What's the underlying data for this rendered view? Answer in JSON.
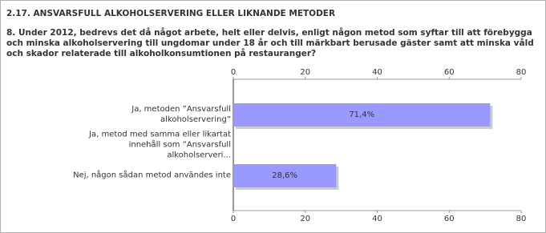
{
  "chart_data": {
    "type": "hbar",
    "title": "2.17. ANSVARSFULL ALKOHOLSERVERING ELLER LIKNANDE METODER",
    "subtitle": "8. Under 2012, bedrevs det då något arbete, helt eller delvis, enligt någon metod som syftar till att förebygga och minska alkoholservering till ungdomar under 18 år och till märkbart berusade gäster samt att minska våld och skador relaterade till alkoholkonsumtionen på restauranger?",
    "categories": [
      "Ja, metoden ”Ansvarsfull alkoholservering”",
      "Ja, metod med samma eller likartat innehåll som ”Ansvarsfull alkoholserveri...",
      "Nej, någon sådan metod användes inte"
    ],
    "values": [
      71.4,
      0,
      28.6
    ],
    "value_labels": [
      "71,4%",
      null,
      "28,6%"
    ],
    "color": "#9999ff",
    "xlim": [
      0,
      80
    ],
    "xticks": [
      0,
      20,
      40,
      60,
      80
    ],
    "grid": false
  }
}
